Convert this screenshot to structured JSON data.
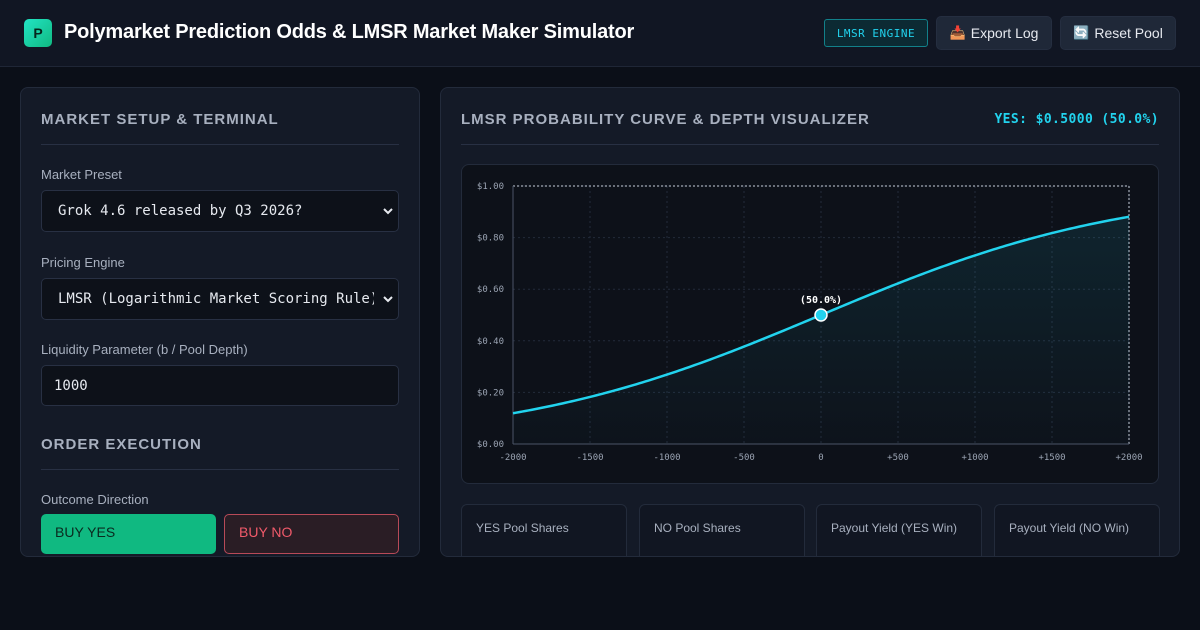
{
  "header": {
    "logo_letter": "P",
    "title": "Polymarket Prediction Odds & LMSR Market Maker Simulator",
    "engine_badge": "LMSR ENGINE",
    "export_label": "Export Log",
    "export_icon": "📥",
    "reset_label": "Reset Pool",
    "reset_icon": "🔄"
  },
  "setup": {
    "title": "MARKET SETUP & TERMINAL",
    "preset_label": "Market Preset",
    "preset_value": "Grok 4.6 released by Q3 2026?",
    "engine_label": "Pricing Engine",
    "engine_value": "LMSR (Logarithmic Market Scoring Rule)",
    "liquidity_label": "Liquidity Parameter (b / Pool Depth)",
    "liquidity_value": "1000"
  },
  "order": {
    "title": "ORDER EXECUTION",
    "direction_label": "Outcome Direction",
    "buy_yes_label": "BUY YES",
    "buy_no_label": "BUY NO"
  },
  "visualizer": {
    "title": "LMSR PROBABILITY CURVE & DEPTH VISUALIZER",
    "price_readout": "YES: $0.5000 (50.0%)",
    "marker_label": "(50.0%)"
  },
  "stats": [
    {
      "label": "YES Pool Shares"
    },
    {
      "label": "NO Pool Shares"
    },
    {
      "label": "Payout Yield (YES Win)"
    },
    {
      "label": "Payout Yield (NO Win)"
    }
  ],
  "chart_data": {
    "type": "line",
    "x_ticks": [
      "-2000",
      "-1500",
      "-1000",
      "-500",
      "0",
      "+500",
      "+1000",
      "+1500",
      "+2000"
    ],
    "y_ticks": [
      "$0.00",
      "$0.20",
      "$0.40",
      "$0.60",
      "$0.80",
      "$1.00"
    ],
    "xlim": [
      -2000,
      2000
    ],
    "ylim": [
      0,
      1
    ],
    "liquidity_b": 1000,
    "series": [
      {
        "x": [
          -2000,
          -1500,
          -1000,
          -500,
          0,
          500,
          1000,
          1500,
          2000
        ],
        "y": [
          0.1192,
          0.1824,
          0.2689,
          0.3775,
          0.5,
          0.6225,
          0.7311,
          0.8176,
          0.8808
        ]
      }
    ],
    "marker": {
      "x": 0,
      "y": 0.5
    },
    "grid": true,
    "colors": {
      "line": "#22d3ee",
      "marker_fill": "#22d3ee",
      "grid": "#232b3b"
    }
  }
}
